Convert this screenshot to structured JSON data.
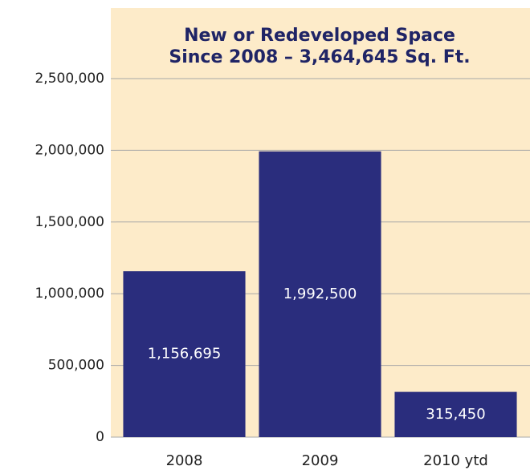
{
  "chart_data": {
    "type": "bar",
    "title": [
      "New or Redeveloped Space",
      "Since 2008 – 3,464,645 Sq. Ft."
    ],
    "categories": [
      "2008",
      "2009",
      "2010 ytd"
    ],
    "values": [
      1156695,
      1992500,
      315450
    ],
    "value_labels": [
      "1,156,695",
      "1,992,500",
      "315,450"
    ],
    "color": "#2a2d7d",
    "ylim": [
      0,
      2500000
    ],
    "yticks": [
      0,
      {
        "value": 500000,
        "label": "500,000"
      },
      {
        "value": 1000000,
        "label": "1,000,000"
      },
      {
        "value": 1500000,
        "label": "1,500,000"
      },
      {
        "value": 2000000,
        "label": "2,000,000"
      },
      {
        "value": 2500000,
        "label": "2,500,000"
      }
    ],
    "grid": true
  }
}
